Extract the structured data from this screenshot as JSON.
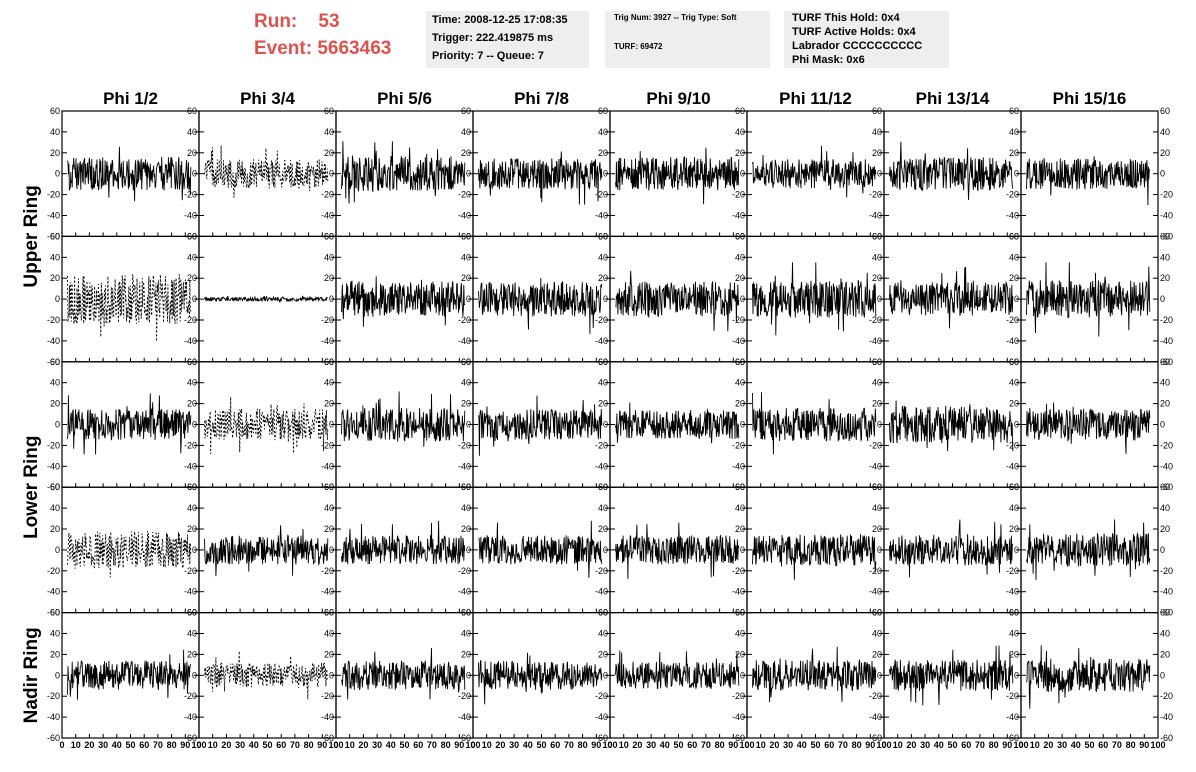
{
  "header": {
    "run_label": "Run:",
    "run_value": "53",
    "event_label": "Event:",
    "event_value": "5663463",
    "run_color": "#d9534f"
  },
  "time_box": {
    "time": "Time: 2008-12-25 17:08:35",
    "trigger": "Trigger: 222.419875 ms",
    "priority": "Priority: 7 -- Queue: 7"
  },
  "trig_box": {
    "trig_num": "Trig Num: 3927 -- Trig Type: Soft",
    "turf": "TURF: 69472"
  },
  "turf_box": {
    "this_hold": "TURF This Hold: 0x4",
    "active_holds": "TURF Active Holds: 0x4",
    "labrador": "Labrador CCCCCCCCCC",
    "phi_mask": "Phi Mask: 0x6"
  },
  "chart_data": {
    "type": "line",
    "columns": [
      "Phi 1/2",
      "Phi 3/4",
      "Phi 5/6",
      "Phi 7/8",
      "Phi 9/10",
      "Phi 11/12",
      "Phi 13/14",
      "Phi 15/16"
    ],
    "rings": [
      "Upper Ring",
      "Lower Ring",
      "Nadir Ring"
    ],
    "rows_per_ring": [
      2,
      2,
      1
    ],
    "y_ticks": [
      "60",
      "40",
      "20",
      "0",
      "-20",
      "-40",
      "-60"
    ],
    "x_ticks": [
      "0",
      "10",
      "20",
      "30",
      "40",
      "50",
      "60",
      "70",
      "80",
      "90",
      "100"
    ],
    "ylim": [
      -60,
      60
    ],
    "xlim": [
      0,
      100
    ],
    "series_color": "#000000",
    "panels": [
      {
        "row": 0,
        "col": 0,
        "style": "solid",
        "amplitude": 16
      },
      {
        "row": 0,
        "col": 1,
        "style": "dashed",
        "amplitude": 14
      },
      {
        "row": 0,
        "col": 2,
        "style": "solid",
        "amplitude": 17
      },
      {
        "row": 0,
        "col": 3,
        "style": "solid",
        "amplitude": 15
      },
      {
        "row": 0,
        "col": 4,
        "style": "solid",
        "amplitude": 16
      },
      {
        "row": 0,
        "col": 5,
        "style": "solid",
        "amplitude": 14
      },
      {
        "row": 0,
        "col": 6,
        "style": "solid",
        "amplitude": 16
      },
      {
        "row": 0,
        "col": 7,
        "style": "solid",
        "amplitude": 15
      },
      {
        "row": 1,
        "col": 0,
        "style": "dashed",
        "amplitude": 24
      },
      {
        "row": 1,
        "col": 1,
        "style": "solid",
        "amplitude": 2
      },
      {
        "row": 1,
        "col": 2,
        "style": "solid",
        "amplitude": 17
      },
      {
        "row": 1,
        "col": 3,
        "style": "solid",
        "amplitude": 17
      },
      {
        "row": 1,
        "col": 4,
        "style": "solid",
        "amplitude": 17
      },
      {
        "row": 1,
        "col": 5,
        "style": "solid",
        "amplitude": 18
      },
      {
        "row": 1,
        "col": 6,
        "style": "solid",
        "amplitude": 16
      },
      {
        "row": 1,
        "col": 7,
        "style": "solid",
        "amplitude": 18
      },
      {
        "row": 2,
        "col": 0,
        "style": "solid",
        "amplitude": 15
      },
      {
        "row": 2,
        "col": 1,
        "style": "dashed",
        "amplitude": 15
      },
      {
        "row": 2,
        "col": 2,
        "style": "solid",
        "amplitude": 16
      },
      {
        "row": 2,
        "col": 3,
        "style": "solid",
        "amplitude": 15
      },
      {
        "row": 2,
        "col": 4,
        "style": "solid",
        "amplitude": 14
      },
      {
        "row": 2,
        "col": 5,
        "style": "solid",
        "amplitude": 16
      },
      {
        "row": 2,
        "col": 6,
        "style": "solid",
        "amplitude": 18
      },
      {
        "row": 2,
        "col": 7,
        "style": "solid",
        "amplitude": 15
      },
      {
        "row": 3,
        "col": 0,
        "style": "dashed",
        "amplitude": 18
      },
      {
        "row": 3,
        "col": 1,
        "style": "solid",
        "amplitude": 14
      },
      {
        "row": 3,
        "col": 2,
        "style": "solid",
        "amplitude": 14
      },
      {
        "row": 3,
        "col": 3,
        "style": "solid",
        "amplitude": 14
      },
      {
        "row": 3,
        "col": 4,
        "style": "solid",
        "amplitude": 14
      },
      {
        "row": 3,
        "col": 5,
        "style": "solid",
        "amplitude": 15
      },
      {
        "row": 3,
        "col": 6,
        "style": "solid",
        "amplitude": 15
      },
      {
        "row": 3,
        "col": 7,
        "style": "solid",
        "amplitude": 16
      },
      {
        "row": 4,
        "col": 0,
        "style": "solid",
        "amplitude": 14
      },
      {
        "row": 4,
        "col": 1,
        "style": "dashed",
        "amplitude": 12
      },
      {
        "row": 4,
        "col": 2,
        "style": "solid",
        "amplitude": 14
      },
      {
        "row": 4,
        "col": 3,
        "style": "solid",
        "amplitude": 14
      },
      {
        "row": 4,
        "col": 4,
        "style": "solid",
        "amplitude": 13
      },
      {
        "row": 4,
        "col": 5,
        "style": "solid",
        "amplitude": 15
      },
      {
        "row": 4,
        "col": 6,
        "style": "solid",
        "amplitude": 15
      },
      {
        "row": 4,
        "col": 7,
        "style": "solid",
        "amplitude": 16
      }
    ]
  }
}
